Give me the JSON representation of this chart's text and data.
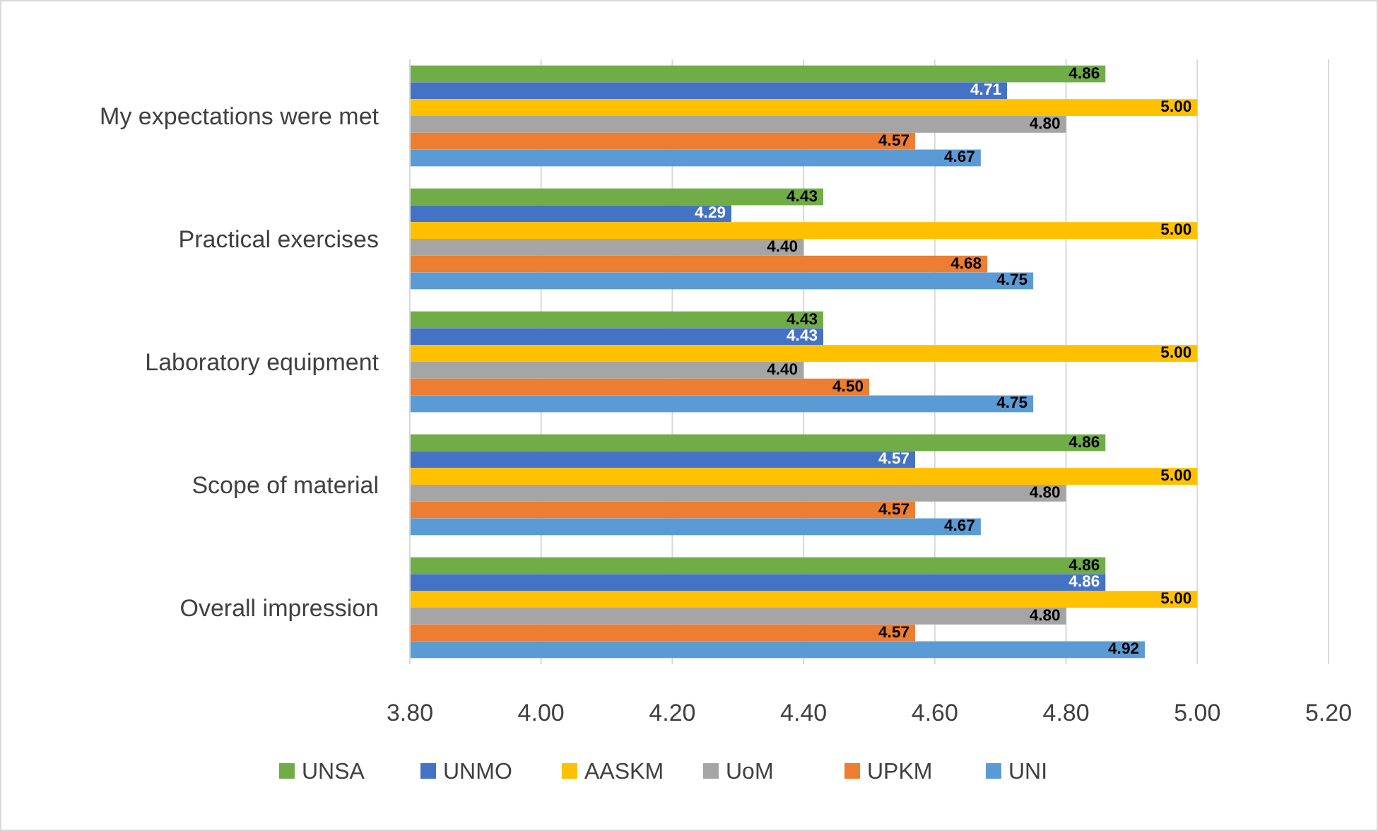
{
  "chart_data": {
    "type": "bar",
    "orientation": "horizontal",
    "categories": [
      "My expectations were met",
      "Practical exercises",
      "Laboratory equipment",
      "Scope of material",
      "Overall impression"
    ],
    "series": [
      {
        "name": "UNSA",
        "color": "#70ad47",
        "values": [
          4.86,
          4.43,
          4.43,
          4.86,
          4.86
        ],
        "value_labels": [
          "4.86",
          "4.43",
          "4.43",
          "4.86",
          "4.86"
        ]
      },
      {
        "name": "UNMO",
        "color": "#4472c4",
        "values": [
          4.71,
          4.29,
          4.43,
          4.57,
          4.86
        ],
        "value_labels": [
          "4.71",
          "4.29",
          "4.43",
          "4.57",
          "4.86"
        ]
      },
      {
        "name": "AASKM",
        "color": "#ffc000",
        "values": [
          5.0,
          5.0,
          5.0,
          5.0,
          5.0
        ],
        "value_labels": [
          "5.00",
          "5.00",
          "5.00",
          "5.00",
          "5.00"
        ]
      },
      {
        "name": "UoM",
        "color": "#a5a5a5",
        "values": [
          4.8,
          4.4,
          4.4,
          4.8,
          4.8
        ],
        "value_labels": [
          "4.80",
          "4.40",
          "4.40",
          "4.80",
          "4.80"
        ]
      },
      {
        "name": "UPKM",
        "color": "#ed7d31",
        "values": [
          4.57,
          4.68,
          4.5,
          4.57,
          4.57
        ],
        "value_labels": [
          "4.57",
          "4.68",
          "4.50",
          "4.57",
          "4.57"
        ]
      },
      {
        "name": "UNI",
        "color": "#5b9bd5",
        "values": [
          4.67,
          4.75,
          4.75,
          4.67,
          4.92
        ],
        "value_labels": [
          "4.67",
          "4.75",
          "4.75",
          "4.67",
          "4.92"
        ]
      }
    ],
    "xlim": [
      3.8,
      5.2
    ],
    "xticks": [
      {
        "value": 3.8,
        "label": "3.80"
      },
      {
        "value": 4.0,
        "label": "4.00"
      },
      {
        "value": 4.2,
        "label": "4.20"
      },
      {
        "value": 4.4,
        "label": "4.40"
      },
      {
        "value": 4.6,
        "label": "4.60"
      },
      {
        "value": 4.8,
        "label": "4.80"
      },
      {
        "value": 5.0,
        "label": "5.00"
      },
      {
        "value": 5.2,
        "label": "5.20"
      }
    ],
    "grid": "x",
    "legend": "bottom"
  }
}
